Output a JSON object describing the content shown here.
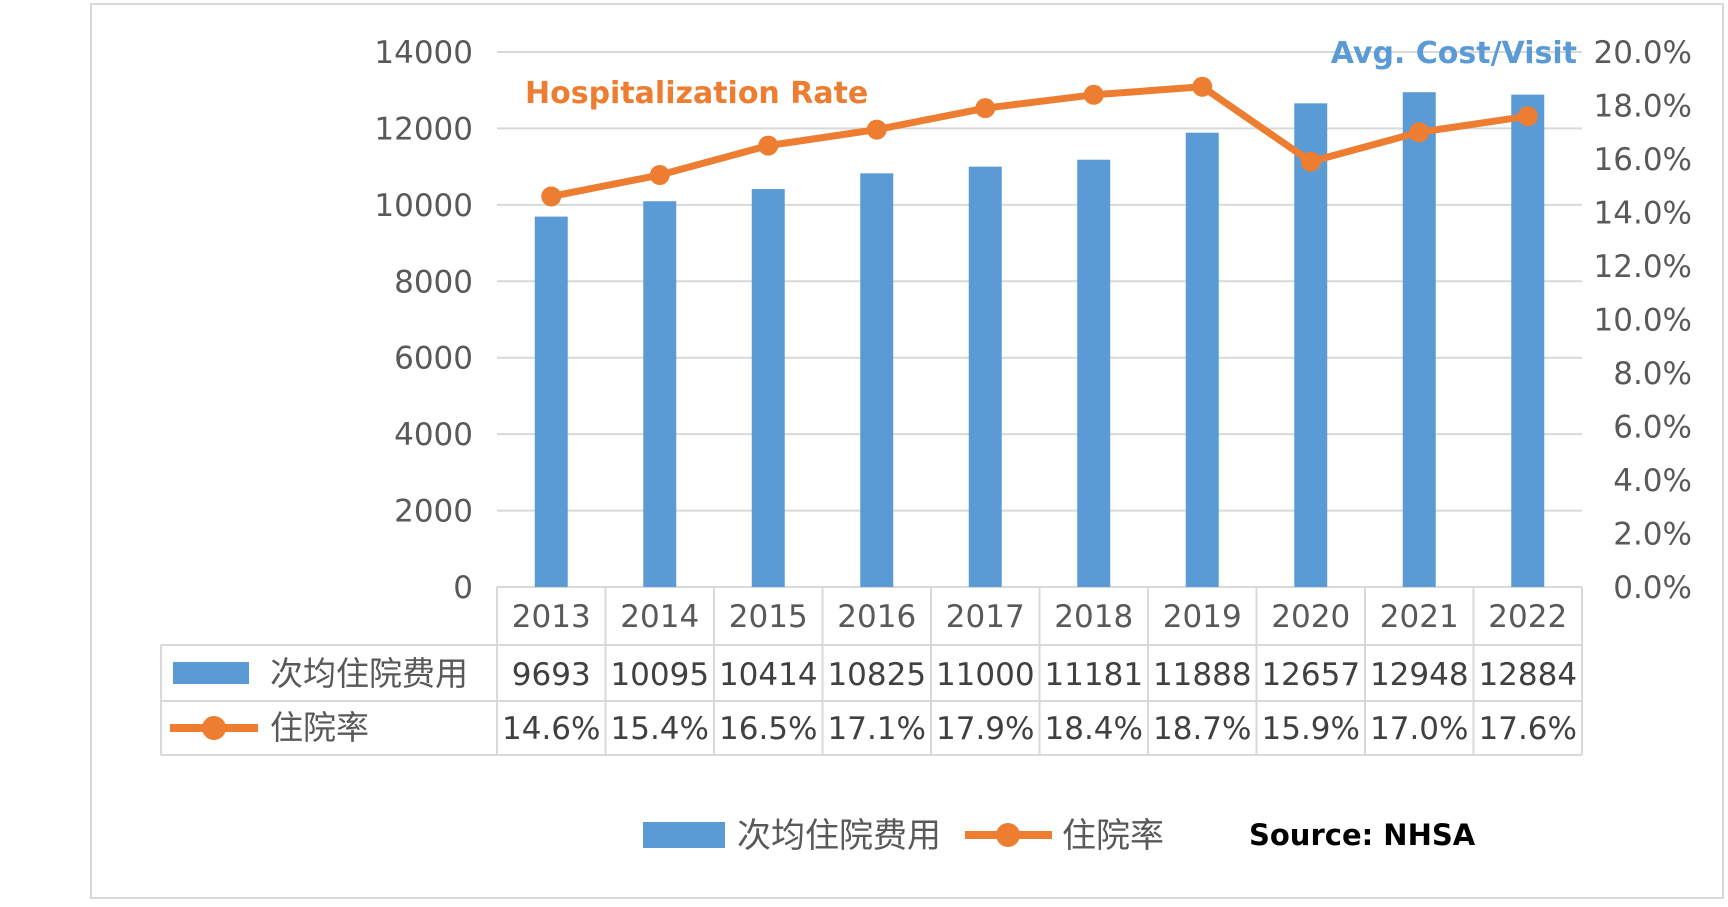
{
  "colors": {
    "bar": "#5B9BD5",
    "line": "#ED7D31",
    "grid": "#D9D9D9",
    "text": "#595959",
    "frame": "#D9D9D9",
    "source": "#000000"
  },
  "annotations": {
    "line_label": "Hospitalization Rate",
    "bar_label": "Avg. Cost/Visit",
    "source": "Source: NHSA"
  },
  "chart_data": {
    "type": "bar",
    "categories": [
      "2013",
      "2014",
      "2015",
      "2016",
      "2017",
      "2018",
      "2019",
      "2020",
      "2021",
      "2022"
    ],
    "series": [
      {
        "name": "次均住院费用",
        "type": "bar",
        "axis": "left",
        "values": [
          9693,
          10095,
          10414,
          10825,
          11000,
          11181,
          11888,
          12657,
          12948,
          12884
        ],
        "labels": [
          "9693",
          "10095",
          "10414",
          "10825",
          "11000",
          "11181",
          "11888",
          "12657",
          "12948",
          "12884"
        ]
      },
      {
        "name": "住院率",
        "type": "line",
        "axis": "right",
        "values": [
          14.6,
          15.4,
          16.5,
          17.1,
          17.9,
          18.4,
          18.7,
          15.9,
          17.0,
          17.6
        ],
        "labels": [
          "14.6%",
          "15.4%",
          "16.5%",
          "17.1%",
          "17.9%",
          "18.4%",
          "18.7%",
          "15.9%",
          "17.0%",
          "17.6%"
        ]
      }
    ],
    "y_left": {
      "ylim": [
        0,
        14000
      ],
      "ticks": [
        "0",
        "2000",
        "4000",
        "6000",
        "8000",
        "10000",
        "12000",
        "14000"
      ]
    },
    "y_right": {
      "ylim": [
        0,
        20
      ],
      "ticks": [
        "0.0%",
        "2.0%",
        "4.0%",
        "6.0%",
        "8.0%",
        "10.0%",
        "12.0%",
        "14.0%",
        "16.0%",
        "18.0%",
        "20.0%"
      ]
    },
    "grid": true,
    "data_table": true,
    "legend": "bottom",
    "legend_entries": [
      "次均住院费用",
      "住院率"
    ]
  }
}
